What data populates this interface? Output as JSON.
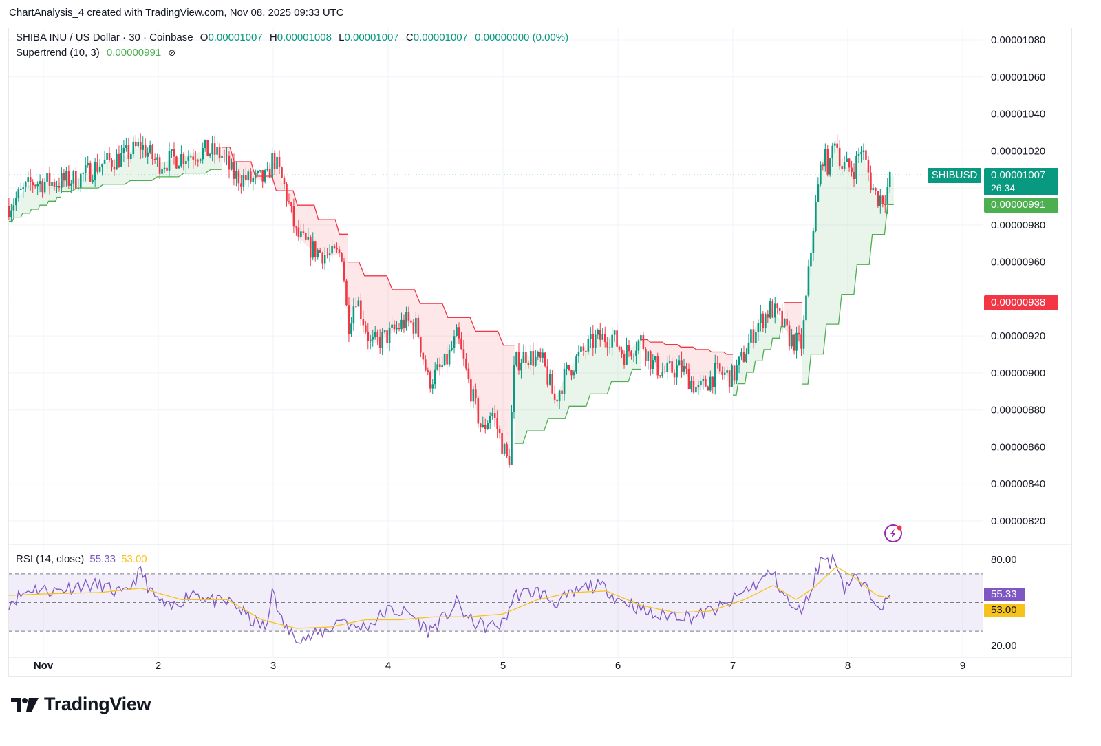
{
  "header": {
    "title": "ChartAnalysis_4 created with TradingView.com, Nov 08, 2025 09:33 UTC"
  },
  "legend": {
    "symbol": "SHIBA INU / US Dollar · 30 · Coinbase",
    "o_label": "O",
    "o": "0.00001007",
    "h_label": "H",
    "h": "0.00001008",
    "l_label": "L",
    "l": "0.00001007",
    "c_label": "C",
    "c": "0.00001007",
    "change": "0.00000000 (0.00%)",
    "supertrend_label": "Supertrend (10, 3)",
    "supertrend_value": "0.00000991",
    "rsi_label": "RSI (14, close)",
    "rsi_value": "55.33",
    "rsi_ma_value": "53.00"
  },
  "tags": {
    "symbol": "SHIBUSD",
    "last_price": "0.00001007",
    "countdown": "26:34",
    "supertrend_price": "0.00000991",
    "red_price": "0.00000938",
    "rsi": "55.33",
    "rsi_ma": "53.00"
  },
  "logo": {
    "text": "TradingView"
  },
  "colors": {
    "up": "#089981",
    "down": "#f23645",
    "supertrend_up": "#4caf50",
    "supertrend_down": "#f23645",
    "rsi": "#7e57c2",
    "rsi_ma": "#f7c31a"
  },
  "chart_data": {
    "type": "candlestick",
    "title": "SHIBA INU / US Dollar · 30 · Coinbase",
    "x_ticks": [
      "Nov",
      "2",
      "3",
      "4",
      "5",
      "6",
      "7",
      "8",
      "9"
    ],
    "y_ticks": [
      "0.00001080",
      "0.00001060",
      "0.00001040",
      "0.00001020",
      "0.00000980",
      "0.00000960",
      "0.00000920",
      "0.00000900",
      "0.00000880",
      "0.00000860",
      "0.00000840",
      "0.00000820"
    ],
    "ylim": [
      8.12e-06,
      1.086e-05
    ],
    "x_range_days": [
      1,
      9
    ],
    "close_path": [
      [
        0.7,
        9.9e-06
      ],
      [
        0.9,
        1.003e-05
      ],
      [
        1.1,
        1.003e-05
      ],
      [
        1.3,
        1.005e-05
      ],
      [
        1.5,
        1.013e-05
      ],
      [
        1.7,
        1.017e-05
      ],
      [
        1.85,
        1.023e-05
      ],
      [
        2.0,
        1.013e-05
      ],
      [
        2.2,
        1.017e-05
      ],
      [
        2.4,
        1.02e-05
      ],
      [
        2.55,
        1.018e-05
      ],
      [
        2.65,
        1.007e-05
      ],
      [
        2.8,
        1.004e-05
      ],
      [
        2.95,
        1.005e-05
      ],
      [
        3.0,
        1.017e-05
      ],
      [
        3.1,
        1e-05
      ],
      [
        3.2,
        9.75e-06
      ],
      [
        3.3,
        9.68e-06
      ],
      [
        3.5,
        9.63e-06
      ],
      [
        3.6,
        9.65e-06
      ],
      [
        3.65,
        9.25e-06
      ],
      [
        3.72,
        9.42e-06
      ],
      [
        3.85,
        9.15e-06
      ],
      [
        4.0,
        9.2e-06
      ],
      [
        4.15,
        9.28e-06
      ],
      [
        4.25,
        9.25e-06
      ],
      [
        4.35,
        8.95e-06
      ],
      [
        4.5,
        9.05e-06
      ],
      [
        4.6,
        9.2e-06
      ],
      [
        4.7,
        8.95e-06
      ],
      [
        4.82,
        8.68e-06
      ],
      [
        4.9,
        8.8e-06
      ],
      [
        5.0,
        8.6e-06
      ],
      [
        5.05,
        8.5e-06
      ],
      [
        5.1,
        9.05e-06
      ],
      [
        5.2,
        9.1e-06
      ],
      [
        5.35,
        9.05e-06
      ],
      [
        5.45,
        8.85e-06
      ],
      [
        5.55,
        9e-06
      ],
      [
        5.65,
        9.08e-06
      ],
      [
        5.8,
        9.18e-06
      ],
      [
        5.95,
        9.2e-06
      ],
      [
        6.05,
        9.1e-06
      ],
      [
        6.2,
        9.18e-06
      ],
      [
        6.3,
        9.05e-06
      ],
      [
        6.4,
        9e-06
      ],
      [
        6.55,
        9.03e-06
      ],
      [
        6.7,
        8.9e-06
      ],
      [
        6.85,
        9e-06
      ],
      [
        7.0,
        8.98e-06
      ],
      [
        7.1,
        9.1e-06
      ],
      [
        7.2,
        9.25e-06
      ],
      [
        7.33,
        9.35e-06
      ],
      [
        7.4,
        9.3e-06
      ],
      [
        7.5,
        9.18e-06
      ],
      [
        7.6,
        9.15e-06
      ],
      [
        7.7,
        9.8e-06
      ],
      [
        7.78,
        1.018e-05
      ],
      [
        7.85,
        1.01e-05
      ],
      [
        7.88,
        1.03e-05
      ],
      [
        7.95,
        1.012e-05
      ],
      [
        8.05,
        1.01e-05
      ],
      [
        8.12,
        1.022e-05
      ],
      [
        8.2,
        1.003e-05
      ],
      [
        8.25,
        9.95e-06
      ],
      [
        8.32,
        9.95e-06
      ],
      [
        8.38,
        1.007e-05
      ]
    ],
    "supertrend": [
      {
        "start": 0.7,
        "end": 1.15,
        "level_start": 9.82e-06,
        "level_end": 9.95e-06,
        "direction": "up"
      },
      {
        "start": 1.15,
        "end": 2.55,
        "level_start": 9.98e-06,
        "level_end": 1.01e-05,
        "direction": "up"
      },
      {
        "start": 2.55,
        "end": 3.65,
        "level_start": 1.022e-05,
        "level_end": 9.75e-06,
        "direction": "down"
      },
      {
        "start": 3.65,
        "end": 5.1,
        "level_start": 9.6e-06,
        "level_end": 9.15e-06,
        "direction": "down"
      },
      {
        "start": 5.1,
        "end": 6.2,
        "level_start": 8.62e-06,
        "level_end": 9.02e-06,
        "direction": "up"
      },
      {
        "start": 6.2,
        "end": 7.0,
        "level_start": 9.18e-06,
        "level_end": 9.1e-06,
        "direction": "down"
      },
      {
        "start": 7.0,
        "end": 7.45,
        "level_start": 8.88e-06,
        "level_end": 9.25e-06,
        "direction": "up"
      },
      {
        "start": 7.45,
        "end": 7.6,
        "level_start": 9.38e-06,
        "level_end": 9.38e-06,
        "direction": "down"
      },
      {
        "start": 7.6,
        "end": 8.4,
        "level_start": 8.94e-06,
        "level_end": 9.91e-06,
        "direction": "up"
      }
    ],
    "last_price": 1.007e-05,
    "rsi": {
      "ylim": [
        15,
        85
      ],
      "y_ticks": [
        "80.00",
        "20.00"
      ],
      "bands": [
        70,
        50,
        30
      ],
      "series": [
        {
          "name": "RSI",
          "points": [
            [
              0.7,
              50
            ],
            [
              0.9,
              60
            ],
            [
              1.1,
              58
            ],
            [
              1.3,
              62
            ],
            [
              1.5,
              62
            ],
            [
              1.7,
              55
            ],
            [
              1.85,
              72
            ],
            [
              1.95,
              55
            ],
            [
              2.1,
              45
            ],
            [
              2.3,
              58
            ],
            [
              2.5,
              50
            ],
            [
              2.65,
              50
            ],
            [
              2.8,
              38
            ],
            [
              2.95,
              32
            ],
            [
              3.0,
              65
            ],
            [
              3.05,
              40
            ],
            [
              3.15,
              28
            ],
            [
              3.3,
              25
            ],
            [
              3.5,
              32
            ],
            [
              3.6,
              40
            ],
            [
              3.7,
              32
            ],
            [
              3.85,
              35
            ],
            [
              4.0,
              45
            ],
            [
              4.2,
              42
            ],
            [
              4.35,
              30
            ],
            [
              4.5,
              40
            ],
            [
              4.6,
              50
            ],
            [
              4.7,
              38
            ],
            [
              4.85,
              33
            ],
            [
              5.0,
              35
            ],
            [
              5.1,
              55
            ],
            [
              5.3,
              58
            ],
            [
              5.45,
              50
            ],
            [
              5.6,
              55
            ],
            [
              5.75,
              62
            ],
            [
              5.9,
              60
            ],
            [
              6.0,
              52
            ],
            [
              6.1,
              50
            ],
            [
              6.2,
              45
            ],
            [
              6.35,
              40
            ],
            [
              6.5,
              42
            ],
            [
              6.65,
              40
            ],
            [
              6.8,
              44
            ],
            [
              6.95,
              48
            ],
            [
              7.1,
              58
            ],
            [
              7.25,
              65
            ],
            [
              7.33,
              72
            ],
            [
              7.45,
              55
            ],
            [
              7.55,
              42
            ],
            [
              7.65,
              52
            ],
            [
              7.72,
              70
            ],
            [
              7.78,
              82
            ],
            [
              7.85,
              78
            ],
            [
              7.9,
              80
            ],
            [
              7.97,
              60
            ],
            [
              8.05,
              68
            ],
            [
              8.15,
              60
            ],
            [
              8.25,
              52
            ],
            [
              8.32,
              48
            ],
            [
              8.38,
              55.33
            ]
          ]
        },
        {
          "name": "RSI-based MA",
          "points": [
            [
              0.7,
              55
            ],
            [
              1.0,
              56
            ],
            [
              1.5,
              57
            ],
            [
              1.85,
              60
            ],
            [
              2.2,
              52
            ],
            [
              2.6,
              52
            ],
            [
              2.9,
              38
            ],
            [
              3.2,
              32
            ],
            [
              3.5,
              33
            ],
            [
              3.8,
              38
            ],
            [
              4.1,
              38
            ],
            [
              4.4,
              40
            ],
            [
              4.7,
              40
            ],
            [
              5.0,
              42
            ],
            [
              5.3,
              52
            ],
            [
              5.6,
              57
            ],
            [
              5.9,
              58
            ],
            [
              6.2,
              48
            ],
            [
              6.5,
              43
            ],
            [
              6.8,
              44
            ],
            [
              7.1,
              52
            ],
            [
              7.35,
              62
            ],
            [
              7.55,
              52
            ],
            [
              7.7,
              60
            ],
            [
              7.9,
              75
            ],
            [
              8.05,
              68
            ],
            [
              8.25,
              55
            ],
            [
              8.38,
              53
            ]
          ]
        }
      ]
    }
  }
}
